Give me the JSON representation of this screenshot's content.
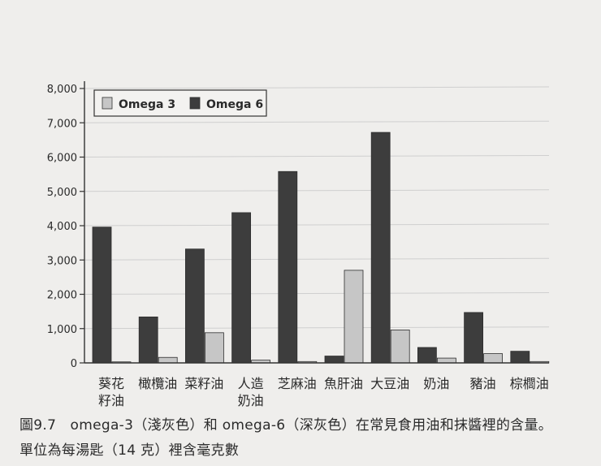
{
  "chart_data": {
    "type": "bar",
    "categories": [
      "葵花\n籽油",
      "橄欖油",
      "菜籽油",
      "人造\n奶油",
      "芝麻油",
      "魚肝油",
      "大豆油",
      "奶油",
      "豬油",
      "棕櫚油"
    ],
    "series": [
      {
        "name": "Omega 3",
        "color": "#c6c6c6",
        "values": [
          30,
          160,
          880,
          80,
          40,
          2700,
          960,
          140,
          270,
          40
        ]
      },
      {
        "name": "Omega 6",
        "color": "#3d3d3d",
        "values": [
          3960,
          1340,
          3320,
          4380,
          5580,
          200,
          6720,
          450,
          1470,
          340
        ]
      }
    ],
    "ylim": [
      0,
      8000
    ],
    "yticks": [
      "0",
      "1,000",
      "2,000",
      "3,000",
      "4,000",
      "5,000",
      "6,000",
      "7,000",
      "8,000"
    ],
    "grid": true,
    "legend_position": "top-left",
    "xlabel": "",
    "ylabel": ""
  },
  "caption": {
    "line1": "圖9.7　omega-3（淺灰色）和 omega-6（深灰色）在常見食用油和抹醬裡的含量。",
    "line2": "單位為每湯匙（14 克）裡含毫克數"
  }
}
